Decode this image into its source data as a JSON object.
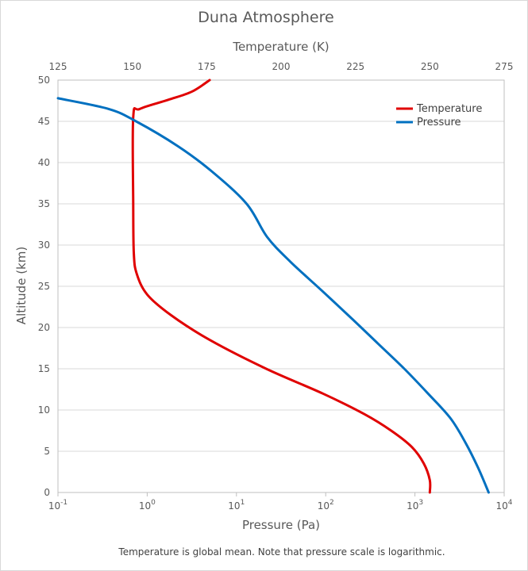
{
  "chart_data": {
    "type": "line",
    "title": "Duna Atmosphere",
    "note": "Temperature is global mean.  Note that pressure scale is logarithmic.",
    "y_axis": {
      "label": "Altitude (km)",
      "range": [
        0,
        50
      ],
      "ticks": [
        "0",
        "5",
        "10",
        "15",
        "20",
        "25",
        "30",
        "35",
        "40",
        "45",
        "50"
      ]
    },
    "x_axis_top": {
      "label": "Temperature (K)",
      "range": [
        125,
        275
      ],
      "ticks": [
        "125",
        "150",
        "175",
        "200",
        "225",
        "250",
        "275"
      ]
    },
    "x_axis_bottom": {
      "label": "Pressure (Pa)",
      "scale": "log",
      "range": [
        0.1,
        10000
      ],
      "ticks": [
        {
          "base": "10",
          "exp": "-1"
        },
        {
          "base": "10",
          "exp": "0"
        },
        {
          "base": "10",
          "exp": "1"
        },
        {
          "base": "10",
          "exp": "2"
        },
        {
          "base": "10",
          "exp": "3"
        },
        {
          "base": "10",
          "exp": "4"
        }
      ]
    },
    "grid": true,
    "legend_position": "top-right",
    "series": [
      {
        "name": "Temperature",
        "color": "#e00000",
        "axis": "temperature",
        "points": [
          {
            "x": 250,
            "y": 0
          },
          {
            "x": 250,
            "y": 1.5
          },
          {
            "x": 248,
            "y": 3.5
          },
          {
            "x": 244,
            "y": 5.5
          },
          {
            "x": 237,
            "y": 7.5
          },
          {
            "x": 228,
            "y": 9.5
          },
          {
            "x": 214,
            "y": 12
          },
          {
            "x": 195,
            "y": 15
          },
          {
            "x": 176,
            "y": 18.5
          },
          {
            "x": 163,
            "y": 21.5
          },
          {
            "x": 155,
            "y": 24
          },
          {
            "x": 151.5,
            "y": 26.5
          },
          {
            "x": 150.5,
            "y": 29
          },
          {
            "x": 150.3,
            "y": 35
          },
          {
            "x": 150.3,
            "y": 45.5
          },
          {
            "x": 152.5,
            "y": 46.5
          },
          {
            "x": 162,
            "y": 47.6
          },
          {
            "x": 170,
            "y": 48.6
          },
          {
            "x": 176,
            "y": 50
          }
        ]
      },
      {
        "name": "Pressure",
        "color": "#0070c0",
        "axis": "pressure",
        "points": [
          {
            "x": 6700,
            "y": 0
          },
          {
            "x": 5100,
            "y": 3
          },
          {
            "x": 3700,
            "y": 6
          },
          {
            "x": 2500,
            "y": 9
          },
          {
            "x": 1400,
            "y": 12
          },
          {
            "x": 760,
            "y": 15
          },
          {
            "x": 390,
            "y": 18
          },
          {
            "x": 200,
            "y": 21
          },
          {
            "x": 90,
            "y": 24.5
          },
          {
            "x": 40,
            "y": 28
          },
          {
            "x": 22,
            "y": 31
          },
          {
            "x": 13,
            "y": 35
          },
          {
            "x": 5.2,
            "y": 39
          },
          {
            "x": 2.2,
            "y": 42
          },
          {
            "x": 0.75,
            "y": 45
          },
          {
            "x": 0.37,
            "y": 46.5
          },
          {
            "x": 0.1,
            "y": 47.8
          }
        ]
      }
    ]
  }
}
